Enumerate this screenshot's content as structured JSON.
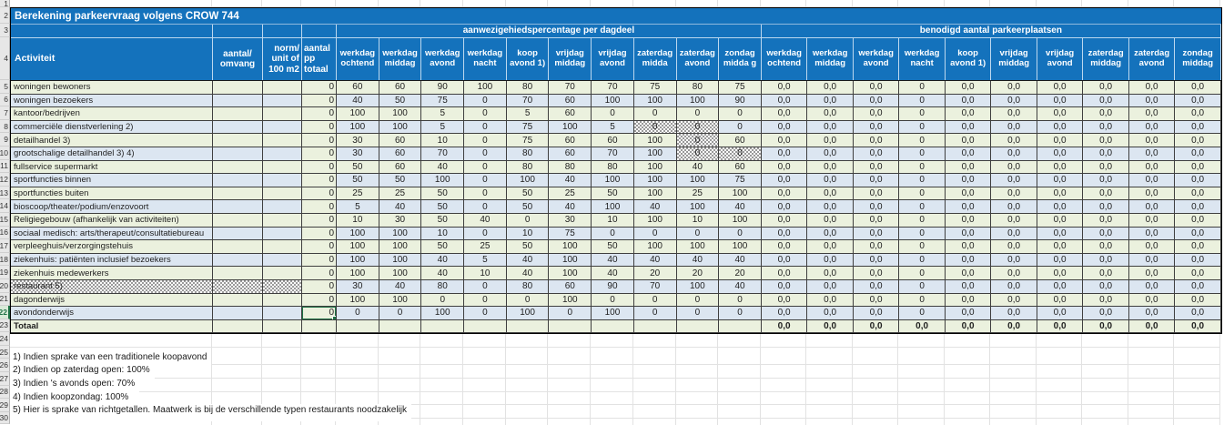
{
  "title": "Berekening parkeervraag volgens CROW 744",
  "sections": {
    "presence": "aanwezigehiedspercentage per dagdeel",
    "required": "benodigd aantal parkeerplaatsen"
  },
  "col_headers": {
    "activity": "Activiteit",
    "amount": "aantal/ omvang",
    "norm": "norm/ unit of 100 m2",
    "pp_total": "aantal pp totaal"
  },
  "presence_cols": [
    "werkdag ochtend",
    "werkdag middag",
    "werkdag avond",
    "werkdag nacht",
    "koop avond 1)",
    "vrijdag middag",
    "vrijdag avond",
    "zaterdag midda",
    "zaterdag avond",
    "zondag midda g"
  ],
  "required_cols": [
    "werkdag ochtend",
    "werkdag middag",
    "werkdag avond",
    "werkdag nacht",
    "koop avond 1)",
    "vrijdag middag",
    "vrijdag avond",
    "zaterdag middag",
    "zaterdag avond",
    "zondag middag"
  ],
  "rows": [
    {
      "n": 5,
      "label": "woningen bewoners",
      "amount": "",
      "norm": "",
      "pp": "0",
      "pres": [
        "60",
        "60",
        "90",
        "100",
        "80",
        "70",
        "70",
        "75",
        "80",
        "75"
      ],
      "req": [
        "0,0",
        "0,0",
        "0,0",
        "0",
        "0,0",
        "0,0",
        "0,0",
        "0,0",
        "0,0",
        "0,0"
      ]
    },
    {
      "n": 6,
      "label": "woningen bezoekers",
      "amount": "",
      "norm": "",
      "pp": "0",
      "pres": [
        "40",
        "50",
        "75",
        "0",
        "70",
        "60",
        "100",
        "100",
        "100",
        "90"
      ],
      "req": [
        "0,0",
        "0,0",
        "0,0",
        "0",
        "0,0",
        "0,0",
        "0,0",
        "0,0",
        "0,0",
        "0,0"
      ]
    },
    {
      "n": 7,
      "label": "kantoor/bedrijven",
      "amount": "",
      "norm": "",
      "pp": "0",
      "pres": [
        "100",
        "100",
        "5",
        "0",
        "5",
        "60",
        "0",
        "0",
        "0",
        "0"
      ],
      "req": [
        "0,0",
        "0,0",
        "0,0",
        "0",
        "0,0",
        "0,0",
        "0,0",
        "0,0",
        "0,0",
        "0,0"
      ]
    },
    {
      "n": 8,
      "label": "commerciële dienstverlening 2)",
      "amount": "",
      "norm": "",
      "pp": "0",
      "pres": [
        "100",
        "100",
        "5",
        "0",
        "75",
        "100",
        "5",
        "0",
        "0",
        "0"
      ],
      "hatch": [
        7,
        8
      ],
      "req": [
        "0,0",
        "0,0",
        "0,0",
        "0",
        "0,0",
        "0,0",
        "0,0",
        "0,0",
        "0,0",
        "0,0"
      ]
    },
    {
      "n": 9,
      "label": "detailhandel 3)",
      "amount": "",
      "norm": "",
      "pp": "0",
      "pres": [
        "30",
        "60",
        "10",
        "0",
        "75",
        "60",
        "60",
        "100",
        "0",
        "60"
      ],
      "hatch": [
        8
      ],
      "req": [
        "0,0",
        "0,0",
        "0,0",
        "0",
        "0,0",
        "0,0",
        "0,0",
        "0,0",
        "0,0",
        "0,0"
      ]
    },
    {
      "n": 10,
      "label": "grootschalige detailhandel 3) 4)",
      "amount": "",
      "norm": "",
      "pp": "0",
      "pres": [
        "30",
        "60",
        "70",
        "0",
        "80",
        "60",
        "70",
        "100",
        "0",
        "0"
      ],
      "hatch": [
        8,
        9
      ],
      "req": [
        "0,0",
        "0,0",
        "0,0",
        "0",
        "0,0",
        "0,0",
        "0,0",
        "0,0",
        "0,0",
        "0,0"
      ]
    },
    {
      "n": 11,
      "label": "fullservice supermarkt",
      "amount": "",
      "norm": "",
      "pp": "0",
      "pres": [
        "50",
        "60",
        "40",
        "0",
        "80",
        "80",
        "80",
        "100",
        "40",
        "60"
      ],
      "req": [
        "0,0",
        "0,0",
        "0,0",
        "0",
        "0,0",
        "0,0",
        "0,0",
        "0,0",
        "0,0",
        "0,0"
      ]
    },
    {
      "n": 12,
      "label": "sportfuncties binnen",
      "amount": "",
      "norm": "",
      "pp": "0",
      "pres": [
        "50",
        "50",
        "100",
        "0",
        "100",
        "40",
        "100",
        "100",
        "100",
        "75"
      ],
      "req": [
        "0,0",
        "0,0",
        "0,0",
        "0",
        "0,0",
        "0,0",
        "0,0",
        "0,0",
        "0,0",
        "0,0"
      ]
    },
    {
      "n": 13,
      "label": "sportfuncties buiten",
      "amount": "",
      "norm": "",
      "pp": "0",
      "pres": [
        "25",
        "25",
        "50",
        "0",
        "50",
        "25",
        "50",
        "100",
        "25",
        "100"
      ],
      "req": [
        "0,0",
        "0,0",
        "0,0",
        "0",
        "0,0",
        "0,0",
        "0,0",
        "0,0",
        "0,0",
        "0,0"
      ]
    },
    {
      "n": 14,
      "label": "bioscoop/theater/podium/enzovoort",
      "amount": "",
      "norm": "",
      "pp": "0",
      "pres": [
        "5",
        "40",
        "50",
        "0",
        "50",
        "40",
        "100",
        "40",
        "100",
        "40"
      ],
      "req": [
        "0,0",
        "0,0",
        "0,0",
        "0",
        "0,0",
        "0,0",
        "0,0",
        "0,0",
        "0,0",
        "0,0"
      ]
    },
    {
      "n": 15,
      "label": "Religiegebouw (afhankelijk van activiteiten)",
      "amount": "",
      "norm": "",
      "pp": "0",
      "pres": [
        "10",
        "30",
        "50",
        "40",
        "0",
        "30",
        "10",
        "100",
        "10",
        "100"
      ],
      "req": [
        "0,0",
        "0,0",
        "0,0",
        "0",
        "0,0",
        "0,0",
        "0,0",
        "0,0",
        "0,0",
        "0,0"
      ]
    },
    {
      "n": 16,
      "label": "sociaal medisch: arts/therapeut/consultatiebureau",
      "amount": "",
      "norm": "",
      "pp": "0",
      "pres": [
        "100",
        "100",
        "10",
        "0",
        "10",
        "75",
        "0",
        "0",
        "0",
        "0"
      ],
      "req": [
        "0,0",
        "0,0",
        "0,0",
        "0",
        "0,0",
        "0,0",
        "0,0",
        "0,0",
        "0,0",
        "0,0"
      ]
    },
    {
      "n": 17,
      "label": "verpleeghuis/verzorgingstehuis",
      "amount": "",
      "norm": "",
      "pp": "0",
      "pres": [
        "100",
        "100",
        "50",
        "25",
        "50",
        "100",
        "50",
        "100",
        "100",
        "100"
      ],
      "req": [
        "0,0",
        "0,0",
        "0,0",
        "0",
        "0,0",
        "0,0",
        "0,0",
        "0,0",
        "0,0",
        "0,0"
      ]
    },
    {
      "n": 18,
      "label": "ziekenhuis: patiënten inclusief bezoekers",
      "amount": "",
      "norm": "",
      "pp": "0",
      "pres": [
        "100",
        "100",
        "40",
        "5",
        "40",
        "100",
        "40",
        "40",
        "40",
        "40"
      ],
      "req": [
        "0,0",
        "0,0",
        "0,0",
        "0",
        "0,0",
        "0,0",
        "0,0",
        "0,0",
        "0,0",
        "0,0"
      ]
    },
    {
      "n": 19,
      "label": "ziekenhuis medewerkers",
      "amount": "",
      "norm": "",
      "pp": "0",
      "pres": [
        "100",
        "100",
        "40",
        "10",
        "40",
        "100",
        "40",
        "20",
        "20",
        "20"
      ],
      "req": [
        "0,0",
        "0,0",
        "0,0",
        "0",
        "0,0",
        "0,0",
        "0,0",
        "0,0",
        "0,0",
        "0,0"
      ]
    },
    {
      "n": 20,
      "label": "restaurant 5)",
      "amount": "",
      "norm": "",
      "pp": "0",
      "pres": [
        "30",
        "40",
        "80",
        "0",
        "80",
        "60",
        "90",
        "70",
        "100",
        "40"
      ],
      "hatch_label": true,
      "req": [
        "0,0",
        "0,0",
        "0,0",
        "0",
        "0,0",
        "0,0",
        "0,0",
        "0,0",
        "0,0",
        "0,0"
      ]
    },
    {
      "n": 21,
      "label": "dagonderwijs",
      "amount": "",
      "norm": "",
      "pp": "0",
      "pres": [
        "100",
        "100",
        "0",
        "0",
        "0",
        "100",
        "0",
        "0",
        "0",
        "0"
      ],
      "req": [
        "0,0",
        "0,0",
        "0,0",
        "0",
        "0,0",
        "0,0",
        "0,0",
        "0,0",
        "0,0",
        "0,0"
      ]
    },
    {
      "n": 22,
      "label": "avondonderwijs",
      "amount": "",
      "norm": "",
      "pp": "0",
      "selected_pp": true,
      "pres": [
        "0",
        "0",
        "100",
        "0",
        "100",
        "0",
        "100",
        "0",
        "0",
        "0"
      ],
      "req": [
        "0,0",
        "0,0",
        "0,0",
        "0",
        "0,0",
        "0,0",
        "0,0",
        "0,0",
        "0,0",
        "0,0"
      ]
    }
  ],
  "total": {
    "label": "Totaal",
    "req": [
      "0,0",
      "0,0",
      "0,0",
      "0,0",
      "0,0",
      "0,0",
      "0,0",
      "0,0",
      "0,0",
      "0,0"
    ]
  },
  "footnotes": [
    "1) Indien sprake van een traditionele koopavond",
    "2) Indien op zaterdag open: 100%",
    "3) Indien 's avonds open: 70%",
    "4) Indien koopzondag: 100%",
    "5) Hier is sprake van richtgetallen. Maatwerk is bij de verschillende typen restaurants noodzakelijk"
  ],
  "selection": {
    "row": 22,
    "column": "aantal pp totaal",
    "value": "0"
  },
  "colors": {
    "header_blue": "#1472BC",
    "row_green": "#EBF1DE",
    "row_blue": "#DCE6F1",
    "grid_dark": "#3F3F3F",
    "selection_green": "#1E7145",
    "gutter_bg": "#E7E7E7",
    "sheet_gridline": "#E2E2E2"
  }
}
